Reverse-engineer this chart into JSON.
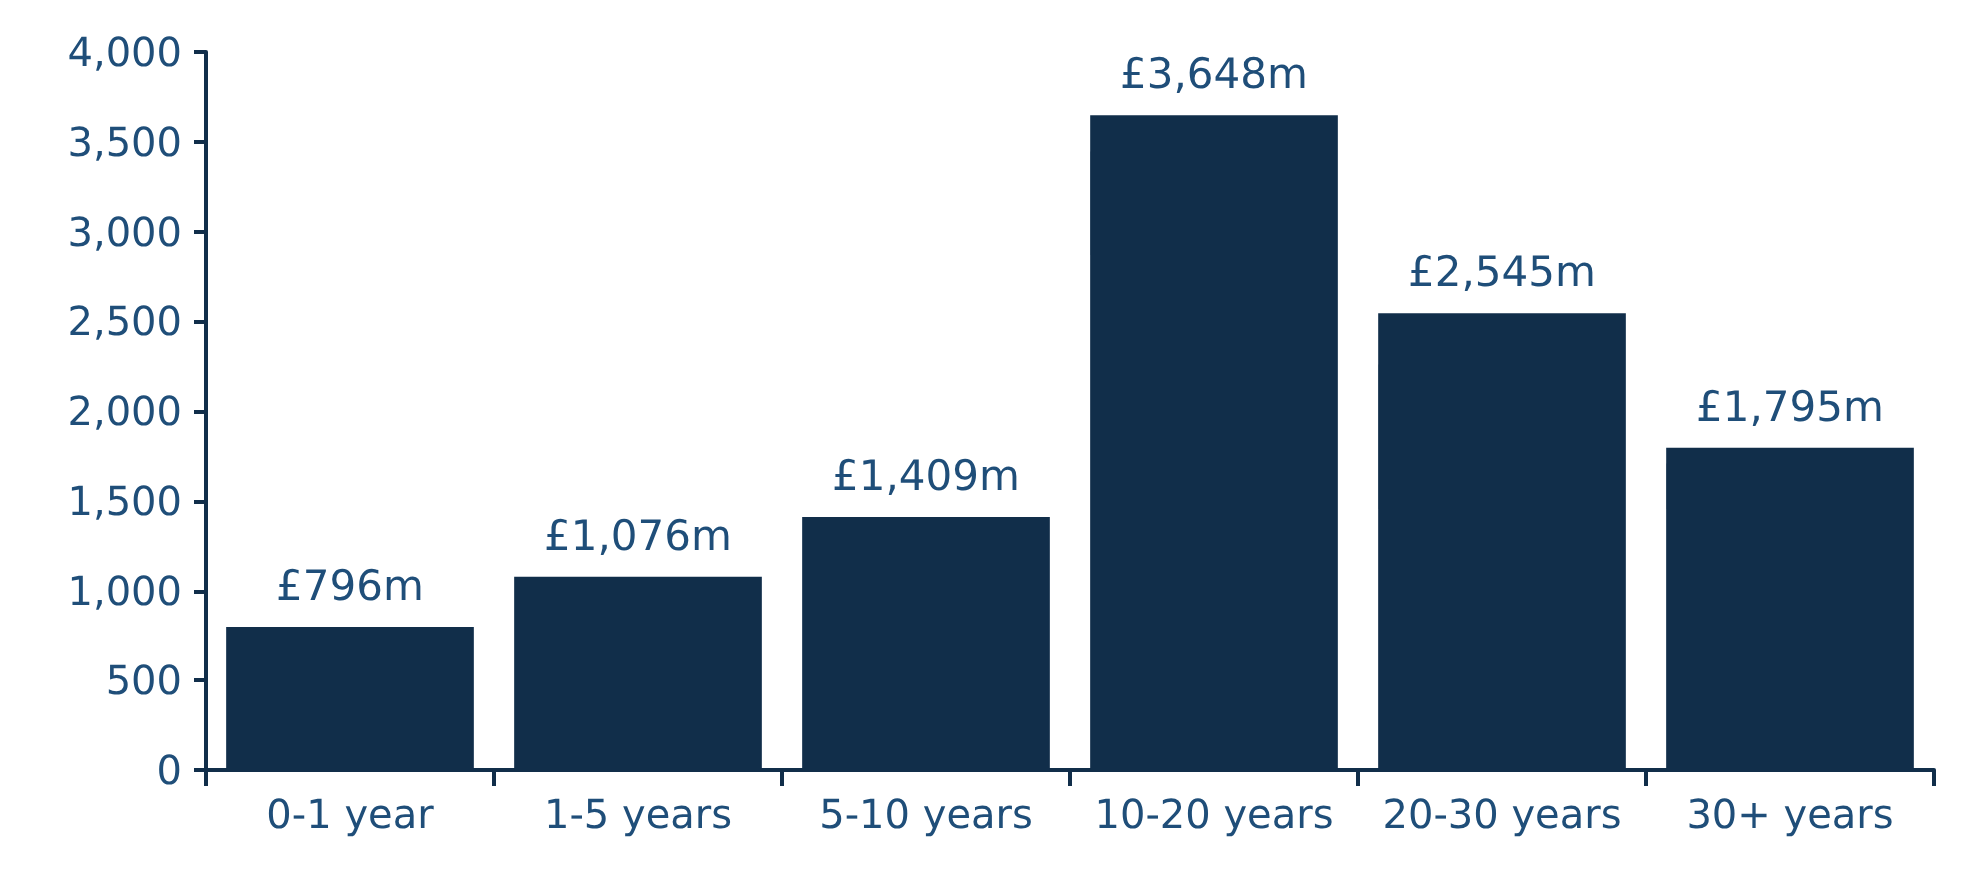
{
  "chart_data": {
    "type": "bar",
    "categories": [
      "0-1 year",
      "1-5 years",
      "5-10 years",
      "10-20 years",
      "20-30 years",
      "30+ years"
    ],
    "values": [
      796,
      1076,
      1409,
      3648,
      2545,
      1795
    ],
    "value_labels": [
      "£796m",
      "£1,076m",
      "£1,409m",
      "£3,648m",
      "£2,545m",
      "£1,795m"
    ],
    "color": "#112e4a",
    "ylim": [
      0,
      4000
    ],
    "yticks": [
      0,
      500,
      {
        "value": 1000,
        "label": "1,000"
      },
      {
        "value": 1500,
        "label": "1,500"
      },
      {
        "value": 2000,
        "label": "2,000"
      },
      {
        "value": 2500,
        "label": "2,500"
      },
      {
        "value": 3000,
        "label": "3,000"
      },
      {
        "value": 3500,
        "label": "3,500"
      },
      {
        "value": 4000,
        "label": "4,000"
      }
    ],
    "grid": false
  }
}
